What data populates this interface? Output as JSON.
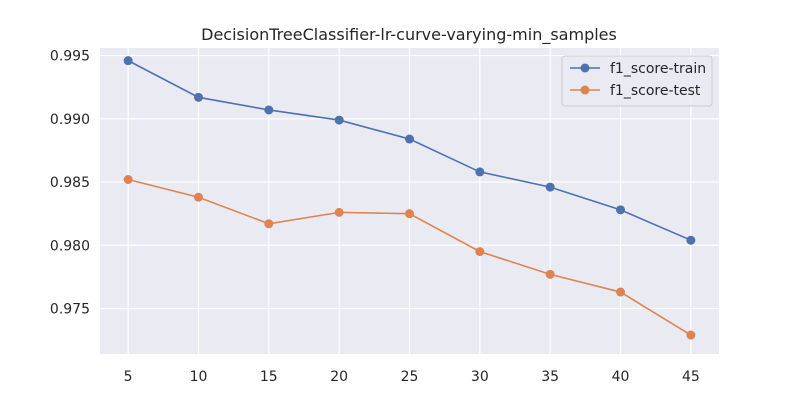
{
  "chart_data": {
    "type": "line",
    "title": "DecisionTreeClassifier-lr-curve-varying-min_samples",
    "xlabel": "",
    "ylabel": "",
    "x": [
      5,
      10,
      15,
      20,
      25,
      30,
      35,
      40,
      45
    ],
    "x_ticks": [
      "5",
      "10",
      "15",
      "20",
      "25",
      "30",
      "35",
      "40",
      "45"
    ],
    "y_ticks": [
      0.975,
      0.98,
      0.985,
      0.99,
      0.995
    ],
    "y_tick_labels": [
      "0.975",
      "0.980",
      "0.985",
      "0.990",
      "0.995"
    ],
    "xlim": [
      3,
      47
    ],
    "ylim": [
      0.9714,
      0.9956
    ],
    "grid": true,
    "legend_position": "top-right",
    "background": "#eaeaf2",
    "series": [
      {
        "name": "f1_score-train",
        "color": "#4c72b0",
        "values": [
          0.9946,
          0.9917,
          0.9907,
          0.9899,
          0.9884,
          0.9858,
          0.9846,
          0.9828,
          0.9804
        ]
      },
      {
        "name": "f1_score-test",
        "color": "#dd8452",
        "values": [
          0.9852,
          0.9838,
          0.9817,
          0.9826,
          0.9825,
          0.9795,
          0.9777,
          0.9763,
          0.9729
        ]
      }
    ]
  }
}
